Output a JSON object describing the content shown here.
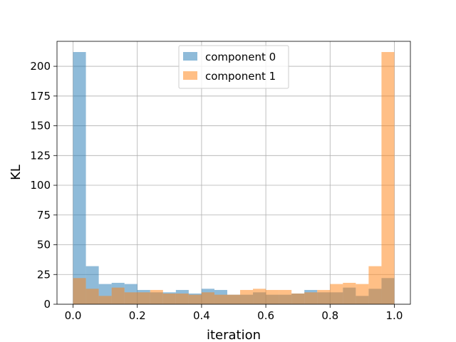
{
  "chart_data": {
    "type": "histogram",
    "xlabel": "iteration",
    "ylabel": "KL",
    "xlim": [
      -0.05,
      1.05
    ],
    "ylim": [
      0,
      221
    ],
    "xticks": [
      "0.0",
      "0.2",
      "0.4",
      "0.6",
      "0.8",
      "1.0"
    ],
    "yticks": [
      "0",
      "25",
      "50",
      "75",
      "100",
      "125",
      "150",
      "175",
      "200"
    ],
    "grid": true,
    "legend_position": "top-center",
    "bin_edges": [
      0.0,
      0.04,
      0.08,
      0.12,
      0.16,
      0.2,
      0.24,
      0.28,
      0.32,
      0.36,
      0.4,
      0.44,
      0.48,
      0.52,
      0.56,
      0.6,
      0.64,
      0.68,
      0.72,
      0.76,
      0.8,
      0.84,
      0.88,
      0.92,
      0.96,
      1.0
    ],
    "series": [
      {
        "name": "component 0",
        "color": "#1f77b4",
        "values": [
          212,
          32,
          17,
          18,
          17,
          12,
          10,
          10,
          12,
          9,
          13,
          12,
          8,
          8,
          10,
          8,
          8,
          9,
          12,
          10,
          10,
          14,
          7,
          13,
          22
        ]
      },
      {
        "name": "component 1",
        "color": "#ff7f0e",
        "values": [
          22,
          13,
          7,
          14,
          10,
          10,
          12,
          9,
          9,
          8,
          10,
          8,
          8,
          12,
          13,
          12,
          12,
          9,
          10,
          12,
          17,
          18,
          17,
          32,
          212
        ]
      }
    ]
  }
}
